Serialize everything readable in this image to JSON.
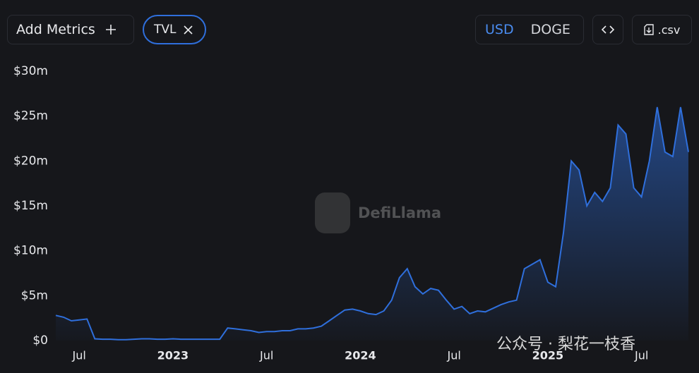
{
  "toolbar": {
    "add_metrics": "Add Metrics",
    "metric_chip": "TVL",
    "currencies": [
      "USD",
      "DOGE"
    ],
    "csv": ".csv"
  },
  "watermarks": {
    "brand": "DefiLlama",
    "wechat": "公众号 · 梨花一枝香"
  },
  "chart_data": {
    "type": "area",
    "categories": [
      null,
      null,
      null,
      "Jul",
      null,
      null,
      null,
      null,
      null,
      null,
      null,
      null,
      null,
      null,
      null,
      "2023",
      null,
      null,
      null,
      null,
      null,
      null,
      null,
      null,
      null,
      null,
      null,
      "Jul",
      null,
      null,
      null,
      null,
      null,
      null,
      null,
      null,
      null,
      null,
      null,
      "2024",
      null,
      null,
      null,
      null,
      null,
      null,
      null,
      null,
      null,
      null,
      null,
      "Jul",
      null,
      null,
      null,
      null,
      null,
      null,
      null,
      null,
      null,
      null,
      null,
      "2025",
      null,
      null,
      null,
      null,
      null,
      null,
      null,
      null,
      null,
      null,
      null,
      "Jul",
      null,
      null,
      null,
      null,
      null,
      null
    ],
    "series": [
      {
        "name": "TVL",
        "color": "#2f6fdc",
        "values": [
          2.8,
          2.6,
          2.2,
          2.3,
          2.4,
          0.2,
          0.15,
          0.15,
          0.1,
          0.1,
          0.15,
          0.2,
          0.2,
          0.15,
          0.15,
          0.2,
          0.15,
          0.15,
          0.15,
          0.15,
          0.15,
          0.15,
          1.4,
          1.3,
          1.2,
          1.1,
          0.9,
          1.0,
          1.0,
          1.1,
          1.1,
          1.3,
          1.3,
          1.4,
          1.6,
          2.2,
          2.8,
          3.4,
          3.5,
          3.3,
          3.0,
          2.9,
          3.3,
          4.5,
          7.0,
          8.0,
          6.0,
          5.2,
          5.8,
          5.6,
          4.5,
          3.5,
          3.8,
          3.0,
          3.3,
          3.2,
          3.6,
          4.0,
          4.3,
          4.5,
          8.0,
          8.5,
          9.0,
          6.5,
          6.0,
          12.0,
          20.0,
          19.0,
          15.0,
          16.5,
          15.5,
          17.0,
          24.0,
          23.0,
          17.0,
          16.0,
          20.0,
          26.0,
          21.0,
          20.5,
          26.0,
          21.0
        ]
      }
    ],
    "ylim": [
      0,
      30
    ],
    "yticks": [
      {
        "value": 0,
        "label": "$0"
      },
      {
        "value": 5,
        "label": "$5m"
      },
      {
        "value": 10,
        "label": "$10m"
      },
      {
        "value": 15,
        "label": "$15m"
      },
      {
        "value": 20,
        "label": "$20m"
      },
      {
        "value": 25,
        "label": "$25m"
      },
      {
        "value": 30,
        "label": "$30m"
      }
    ],
    "grid": false
  }
}
